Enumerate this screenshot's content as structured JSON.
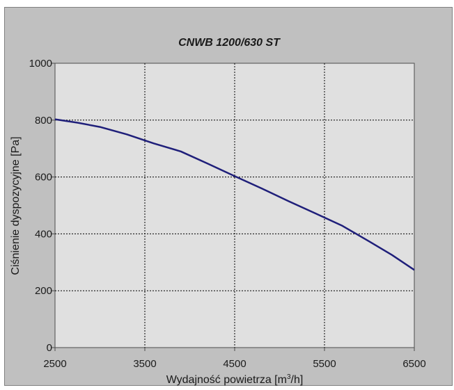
{
  "chart_data": {
    "type": "line",
    "title": "CNWB 1200/630 ST",
    "xlabel": "Wydajność powietrza [m³/h]",
    "xlabel_parts": {
      "text": "Wydajność powietrza [m",
      "sup": "3",
      "tail": "/h]"
    },
    "ylabel": "Ciśnienie dyspozycyjne [Pa]",
    "xlim": [
      2500,
      6500
    ],
    "ylim": [
      0,
      1000
    ],
    "xticks": [
      2500,
      3500,
      4500,
      5500,
      6500
    ],
    "yticks": [
      0,
      200,
      400,
      600,
      800,
      1000
    ],
    "grid": true,
    "legend": "none",
    "series": [
      {
        "color": "#1f1f7a",
        "x": [
          2500,
          2750,
          3000,
          3300,
          3600,
          3900,
          4200,
          4500,
          4800,
          5100,
          5400,
          5700,
          6000,
          6250,
          6500
        ],
        "y": [
          803,
          791,
          776,
          750,
          718,
          690,
          647,
          603,
          560,
          515,
          472,
          428,
          373,
          326,
          273
        ]
      }
    ],
    "colors": {
      "background": "#c0c0c0",
      "plot_area": "#e0e0e0",
      "line": "#1f1f7a",
      "grid": "#000000"
    }
  }
}
